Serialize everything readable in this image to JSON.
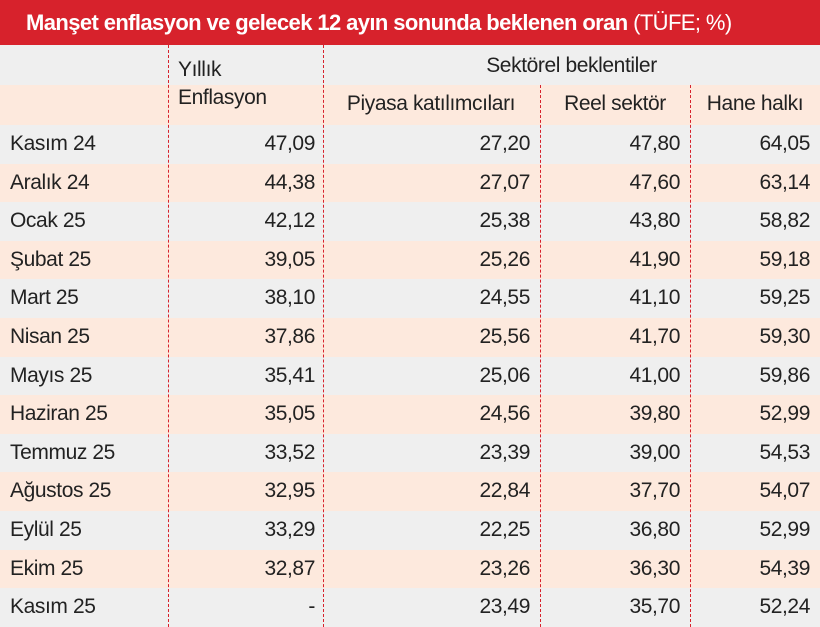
{
  "title": "Manşet enflasyon ve gelecek 12 ayın sonunda beklenen oran",
  "title_unit": "(TÜFE; %)",
  "header": {
    "annual": "Yıllık Enflasyon",
    "sector_group": "Sektörel beklentiler",
    "sectors": [
      "Piyasa katılımcıları",
      "Reel sektör",
      "Hane halkı"
    ]
  },
  "table": {
    "rows": [
      [
        "Kasım 24",
        "47,09",
        "27,20",
        "47,80",
        "64,05"
      ],
      [
        "Aralık 24",
        "44,38",
        "27,07",
        "47,60",
        "63,14"
      ],
      [
        "Ocak 25",
        "42,12",
        "25,38",
        "43,80",
        "58,82"
      ],
      [
        "Şubat 25",
        "39,05",
        "25,26",
        "41,90",
        "59,18"
      ],
      [
        "Mart 25",
        "38,10",
        "24,55",
        "41,10",
        "59,25"
      ],
      [
        "Nisan 25",
        "37,86",
        "25,56",
        "41,70",
        "59,30"
      ],
      [
        "Mayıs 25",
        "35,41",
        "25,06",
        "41,00",
        "59,86"
      ],
      [
        "Haziran 25",
        "35,05",
        "24,56",
        "39,80",
        "52,99"
      ],
      [
        "Temmuz 25",
        "33,52",
        "23,39",
        "39,00",
        "54,53"
      ],
      [
        "Ağustos 25",
        "32,95",
        "22,84",
        "37,70",
        "54,07"
      ],
      [
        "Eylül 25",
        "33,29",
        "22,25",
        "36,80",
        "52,99"
      ],
      [
        "Ekim 25",
        "32,87",
        "23,26",
        "36,30",
        "54,39"
      ],
      [
        "Kasım 25",
        "-",
        "23,49",
        "35,70",
        "52,24"
      ]
    ]
  }
}
